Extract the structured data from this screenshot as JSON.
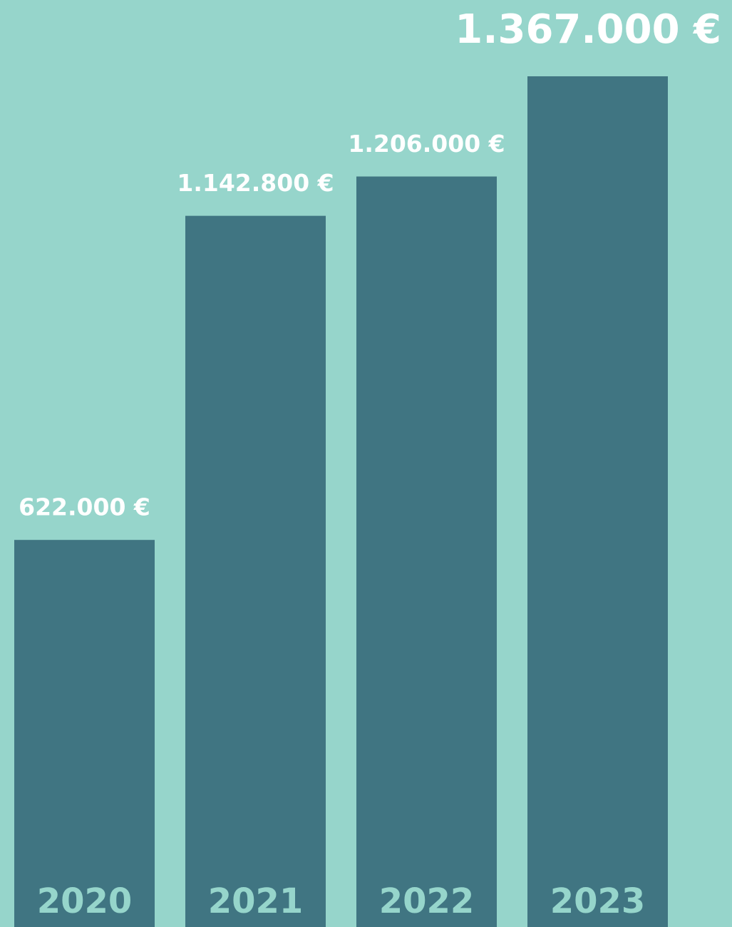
{
  "chart_data": {
    "type": "bar",
    "categories": [
      "2020",
      "2021",
      "2022",
      "2023"
    ],
    "values": [
      622000,
      1142800,
      1206000,
      1367000
    ],
    "value_labels": [
      "622.000 €",
      "1.142.800 €",
      "1.206.000 €",
      "1.367.000 €"
    ],
    "color": "#407582",
    "background": "#96d5cb"
  }
}
